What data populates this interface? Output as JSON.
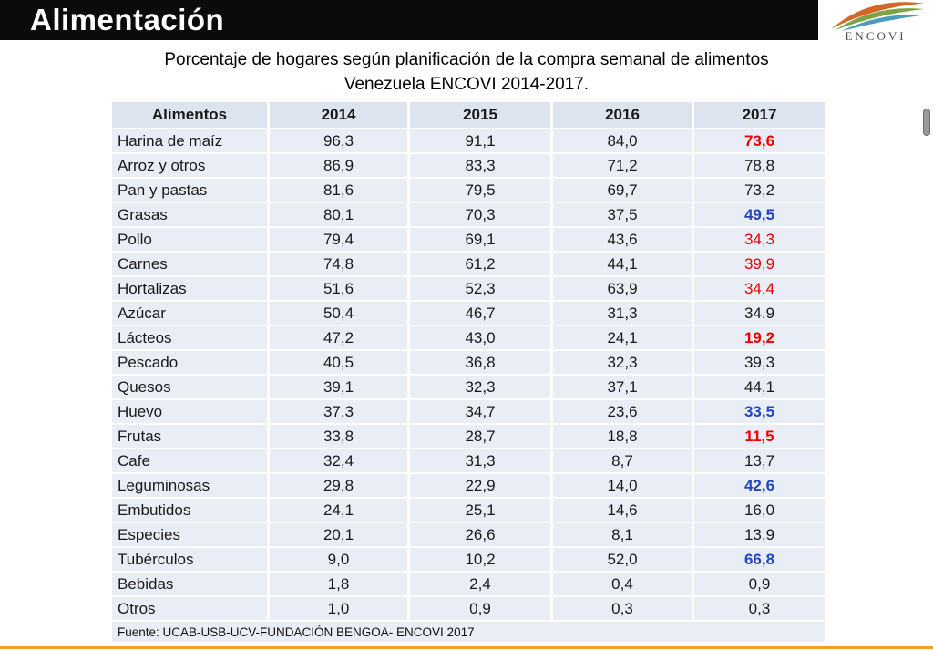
{
  "header": {
    "title": "Alimentación",
    "logo_text": "ENCOVI"
  },
  "subtitle": {
    "line1": "Porcentaje de hogares según planificación de la compra semanal de alimentos",
    "line2": "Venezuela ENCOVI 2014-2017."
  },
  "table": {
    "columns": [
      "Alimentos",
      "2014",
      "2015",
      "2016",
      "2017"
    ],
    "rows": [
      {
        "name": "Harina de maíz",
        "values": [
          "96,3",
          "91,1",
          "84,0",
          "73,6"
        ],
        "style_2017": "red-bold"
      },
      {
        "name": "Arroz y otros",
        "values": [
          "86,9",
          "83,3",
          "71,2",
          "78,8"
        ],
        "style_2017": "normal"
      },
      {
        "name": "Pan y pastas",
        "values": [
          "81,6",
          "79,5",
          "69,7",
          "73,2"
        ],
        "style_2017": "normal"
      },
      {
        "name": "Grasas",
        "values": [
          "80,1",
          "70,3",
          "37,5",
          "49,5"
        ],
        "style_2017": "blue-bold"
      },
      {
        "name": "Pollo",
        "values": [
          "79,4",
          "69,1",
          "43,6",
          "34,3"
        ],
        "style_2017": "red"
      },
      {
        "name": "Carnes",
        "values": [
          "74,8",
          "61,2",
          "44,1",
          "39,9"
        ],
        "style_2017": "red"
      },
      {
        "name": "Hortalizas",
        "values": [
          "51,6",
          "52,3",
          "63,9",
          "34,4"
        ],
        "style_2017": "red"
      },
      {
        "name": "Azúcar",
        "values": [
          "50,4",
          "46,7",
          "31,3",
          "34.9"
        ],
        "style_2017": "normal"
      },
      {
        "name": "Lácteos",
        "values": [
          "47,2",
          "43,0",
          "24,1",
          "19,2"
        ],
        "style_2017": "red-bold"
      },
      {
        "name": "Pescado",
        "values": [
          "40,5",
          "36,8",
          "32,3",
          "39,3"
        ],
        "style_2017": "normal"
      },
      {
        "name": "Quesos",
        "values": [
          "39,1",
          "32,3",
          "37,1",
          "44,1"
        ],
        "style_2017": "normal"
      },
      {
        "name": "Huevo",
        "values": [
          "37,3",
          "34,7",
          "23,6",
          "33,5"
        ],
        "style_2017": "blue-bold"
      },
      {
        "name": "Frutas",
        "values": [
          "33,8",
          "28,7",
          "18,8",
          "11,5"
        ],
        "style_2017": "red-bold"
      },
      {
        "name": "Cafe",
        "values": [
          "32,4",
          "31,3",
          "8,7",
          "13,7"
        ],
        "style_2017": "normal"
      },
      {
        "name": "Leguminosas",
        "values": [
          "29,8",
          "22,9",
          "14,0",
          "42,6"
        ],
        "style_2017": "blue-bold"
      },
      {
        "name": "Embutidos",
        "values": [
          "24,1",
          "25,1",
          "14,6",
          "16,0"
        ],
        "style_2017": "normal"
      },
      {
        "name": "Especies",
        "values": [
          "20,1",
          "26,6",
          "8,1",
          "13,9"
        ],
        "style_2017": "normal"
      },
      {
        "name": "Tubérculos",
        "values": [
          "9,0",
          "10,2",
          "52,0",
          "66,8"
        ],
        "style_2017": "blue-bold"
      },
      {
        "name": "Bebidas",
        "values": [
          "1,8",
          "2,4",
          "0,4",
          "0,9"
        ],
        "style_2017": "normal"
      },
      {
        "name": "Otros",
        "values": [
          "1,0",
          "0,9",
          "0,3",
          "0,3"
        ],
        "style_2017": "normal"
      }
    ],
    "source": "Fuente: UCAB-USB-UCV-FUNDACIÓN BENGOA- ENCOVI 2017"
  },
  "colors": {
    "accent_red": "#ee0000",
    "accent_blue": "#1f45c1",
    "row_bg": "#e9edf5",
    "header_bg": "#dce4ef",
    "bottom_line": "#f2a21f",
    "swoosh_orange": "#d4662a",
    "swoosh_green": "#7ea343",
    "swoosh_blue": "#4d9bbd"
  }
}
